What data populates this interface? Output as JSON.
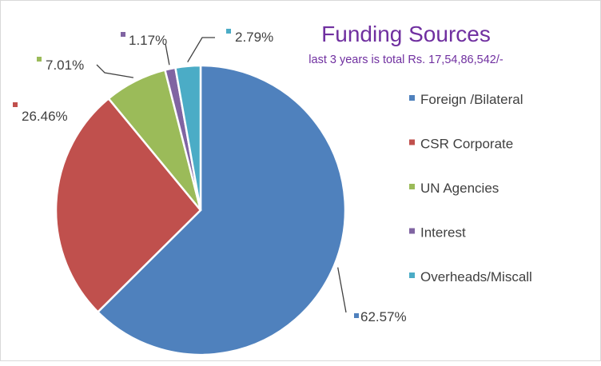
{
  "chart_data": {
    "type": "pie",
    "title": "Funding Sources",
    "subtitle": "last 3 years is total Rs. 17,54,86,542/-",
    "categories": [
      "Foreign /Bilateral",
      "CSR Corporate",
      "UN Agencies",
      "Interest",
      "Overheads/Miscall"
    ],
    "values": [
      62.57,
      26.46,
      7.01,
      1.17,
      2.79
    ],
    "data_labels": [
      "62.57%",
      "26.46%",
      "7.01%",
      "1.17%",
      "2.79%"
    ],
    "colors": [
      "#4F81BD",
      "#C0504D",
      "#9BBB59",
      "#8064A2",
      "#4BACC6"
    ],
    "start_angle_deg": 0,
    "direction": "clockwise",
    "legend_position": "right",
    "title_color": "#7030A0"
  }
}
